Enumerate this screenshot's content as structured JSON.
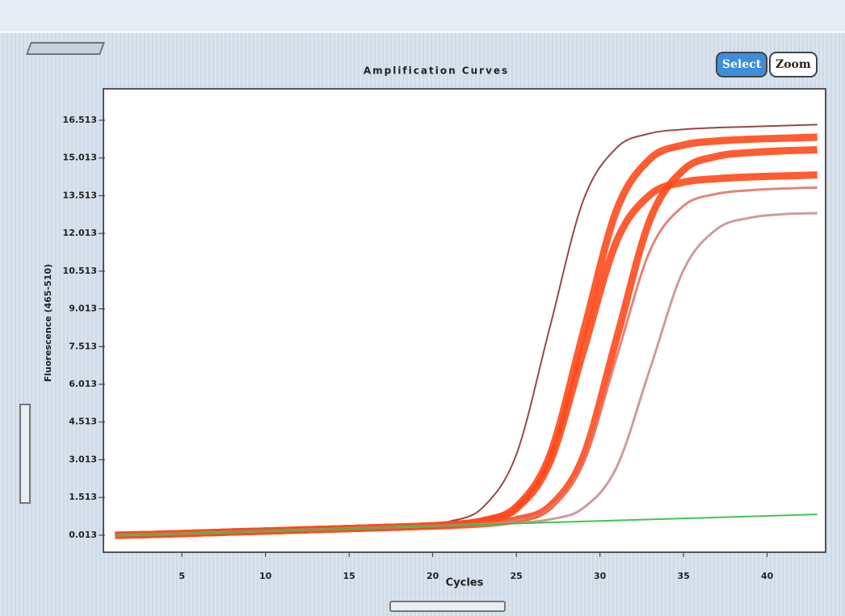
{
  "toolbar": {
    "select": "Select",
    "zoom": "Zoom"
  },
  "chart_data": {
    "type": "line",
    "title": "Amplification Curves",
    "x_label": "Cycles",
    "y_label": "Fluorescence (465-510)",
    "x": [
      1,
      3,
      5,
      7,
      9,
      11,
      13,
      15,
      17,
      19,
      21,
      23,
      25,
      27,
      29,
      31,
      33,
      35,
      37,
      39,
      41,
      43
    ],
    "series": [
      {
        "color": "#8b3535",
        "values": [
          0.01,
          0.04,
          0.08,
          0.12,
          0.16,
          0.2,
          0.24,
          0.28,
          0.33,
          0.39,
          0.56,
          1.12,
          3.22,
          8.27,
          13.32,
          15.42,
          15.99,
          16.15,
          16.22,
          16.26,
          16.3,
          16.34
        ]
      },
      {
        "color": "#ff4a1c",
        "values": [
          0.01,
          0.04,
          0.08,
          0.12,
          0.16,
          0.2,
          0.24,
          0.28,
          0.32,
          0.36,
          0.43,
          0.59,
          1.14,
          3.18,
          8.06,
          12.95,
          14.98,
          15.53,
          15.69,
          15.76,
          15.8,
          15.84
        ]
      },
      {
        "color": "#ff4a1c",
        "values": [
          0.01,
          0.04,
          0.08,
          0.12,
          0.16,
          0.2,
          0.24,
          0.28,
          0.32,
          0.36,
          0.43,
          0.58,
          1.07,
          2.91,
          7.31,
          11.71,
          13.55,
          14.05,
          14.19,
          14.26,
          14.3,
          14.34
        ]
      },
      {
        "color": "#ff4a1c",
        "values": [
          0.01,
          0.04,
          0.08,
          0.12,
          0.16,
          0.2,
          0.24,
          0.28,
          0.32,
          0.36,
          0.4,
          0.47,
          0.63,
          1.16,
          3.13,
          7.85,
          12.57,
          14.54,
          15.08,
          15.23,
          15.3,
          15.34
        ]
      },
      {
        "color": "#e0786a",
        "values": [
          0.01,
          0.04,
          0.08,
          0.12,
          0.16,
          0.2,
          0.24,
          0.28,
          0.32,
          0.36,
          0.4,
          0.47,
          0.61,
          1.09,
          2.86,
          7.1,
          11.34,
          13.11,
          13.59,
          13.73,
          13.8,
          13.84
        ]
      },
      {
        "color": "#c99090",
        "values": [
          0.01,
          0.04,
          0.08,
          0.12,
          0.16,
          0.2,
          0.24,
          0.28,
          0.32,
          0.36,
          0.4,
          0.44,
          0.5,
          0.64,
          1.09,
          2.72,
          6.64,
          10.56,
          12.19,
          12.64,
          12.78,
          12.82
        ]
      },
      {
        "color": "#2fbf3f",
        "values": [
          0.01,
          0.04,
          0.08,
          0.12,
          0.16,
          0.2,
          0.24,
          0.28,
          0.32,
          0.36,
          0.4,
          0.44,
          0.48,
          0.52,
          0.56,
          0.6,
          0.64,
          0.68,
          0.72,
          0.76,
          0.8,
          0.84
        ]
      }
    ],
    "xlim": [
      0.4,
      43.4
    ],
    "xticks": [
      5,
      10,
      15,
      20,
      25,
      30,
      35,
      40
    ],
    "ylim": [
      -0.6,
      17.7
    ],
    "yticks": [
      0.013,
      1.513,
      3.013,
      4.513,
      6.013,
      7.513,
      9.013,
      10.513,
      12.013,
      13.513,
      15.013,
      16.513
    ]
  }
}
